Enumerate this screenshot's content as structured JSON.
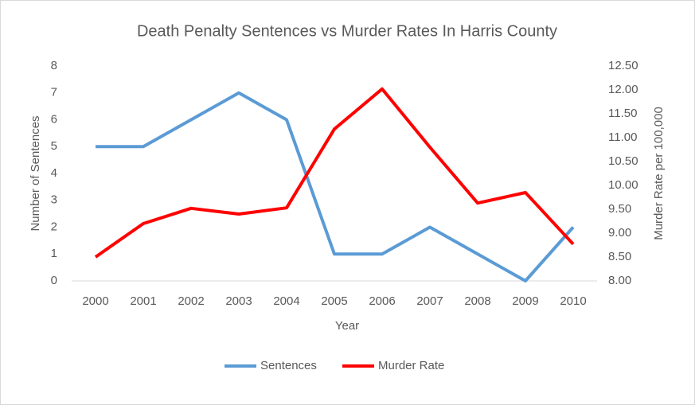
{
  "chart_data": {
    "type": "line",
    "title": "Death Penalty Sentences vs Murder Rates In Harris County",
    "x_label": "Year",
    "y_label": "Number of Sentences",
    "y2_label": "Murder Rate per 100,000",
    "categories": [
      "2000",
      "2001",
      "2002",
      "2003",
      "2004",
      "2005",
      "2006",
      "2007",
      "2008",
      "2009",
      "2010"
    ],
    "series": [
      {
        "name": "Sentences",
        "color": "#5b9bd5",
        "values": [
          5,
          5,
          6,
          7,
          6,
          1,
          1,
          2,
          1,
          0,
          2
        ]
      },
      {
        "name": "Murder Rate",
        "color": "#ff0000",
        "axis": "y2",
        "values": [
          8.5,
          9.2,
          9.52,
          9.4,
          9.53,
          11.18,
          12.02,
          10.8,
          9.63,
          9.85,
          8.77
        ]
      }
    ],
    "ylim": [
      0,
      8
    ],
    "yticks": [
      0,
      1,
      2,
      3,
      4,
      5,
      6,
      7,
      8
    ],
    "y2lim": [
      8,
      12.5
    ],
    "y2ticks": [
      {
        "value": 8,
        "label": "8.00"
      },
      {
        "value": 8.5,
        "label": "8.50"
      },
      {
        "value": 9,
        "label": "9.00"
      },
      {
        "value": 9.5,
        "label": "9.50"
      },
      {
        "value": 10,
        "label": "10.00"
      },
      {
        "value": 10.5,
        "label": "10.50"
      },
      {
        "value": 11,
        "label": "11.00"
      },
      {
        "value": 11.5,
        "label": "11.50"
      },
      {
        "value": 12,
        "label": "12.00"
      },
      {
        "value": 12.5,
        "label": "12.50"
      }
    ],
    "legend": "bottom",
    "grid": false
  }
}
